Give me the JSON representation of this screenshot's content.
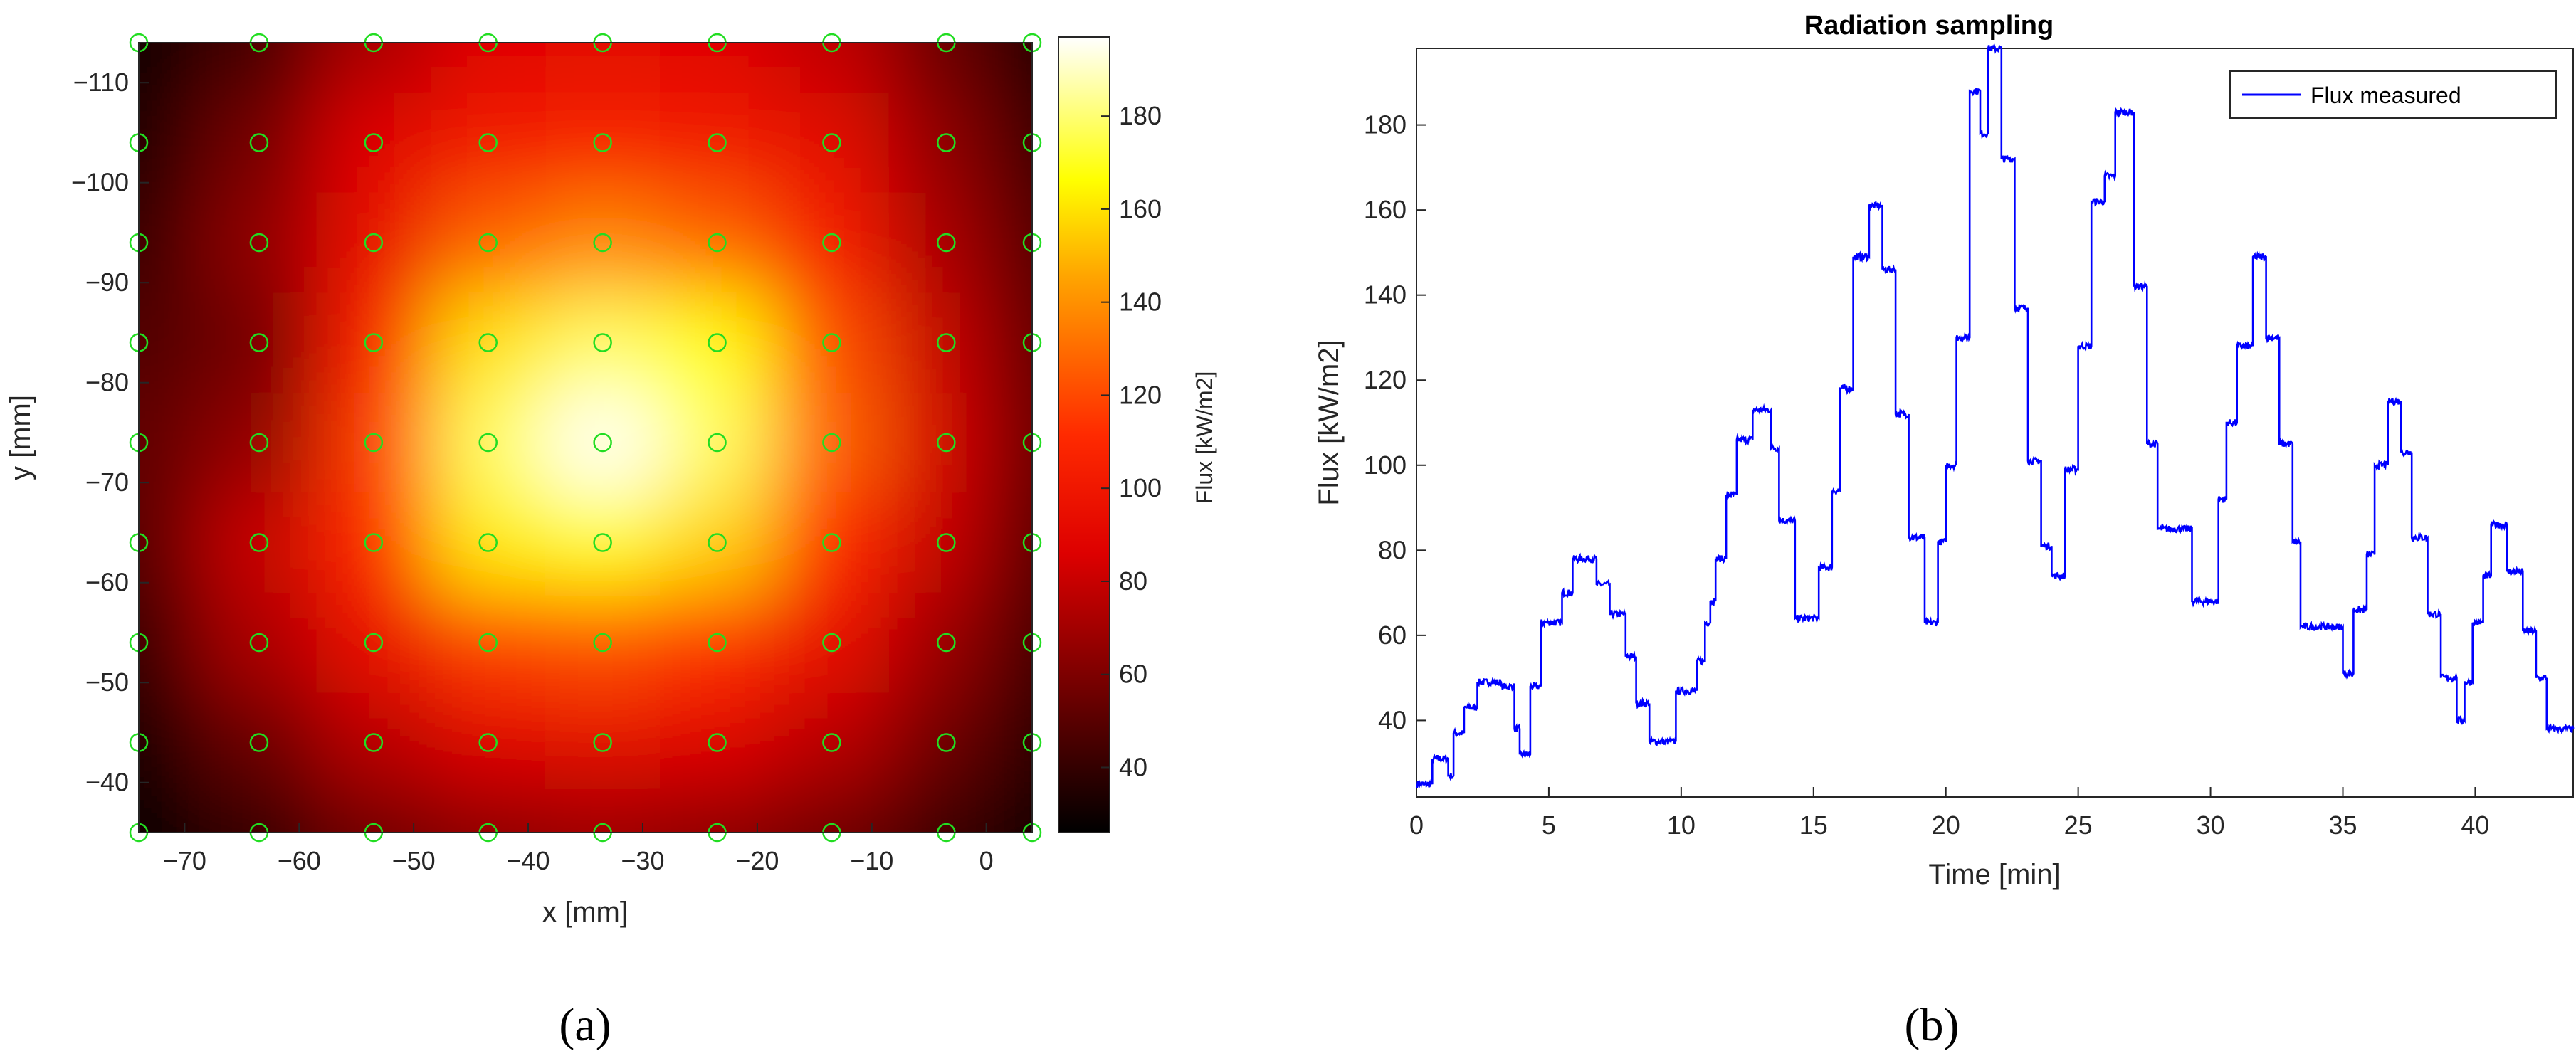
{
  "panels": {
    "a": "(a)",
    "b": "(b)"
  },
  "chart_data": [
    {
      "type": "heatmap",
      "xlabel": "x [mm]",
      "ylabel": "y [mm]",
      "colorbar_label": "Flux [kW/m2]",
      "colormap": "hot",
      "xlim": [
        -74,
        4
      ],
      "ylim": [
        -35,
        -114
      ],
      "y_axis_reversed": true,
      "clim": [
        26,
        197
      ],
      "x_ticks": [
        -70,
        -60,
        -50,
        -40,
        -30,
        -20,
        -10,
        0
      ],
      "y_ticks": [
        -110,
        -100,
        -90,
        -80,
        -70,
        -60,
        -50,
        -40
      ],
      "colorbar_ticks": [
        40,
        60,
        80,
        100,
        120,
        140,
        160,
        180
      ],
      "sample_points_x": [
        -74,
        -63.5,
        -53.5,
        -43.5,
        -33.5,
        -23.5,
        -13.5,
        -3.5,
        4
      ],
      "sample_points_y": [
        -114,
        -104,
        -94,
        -84,
        -74,
        -64,
        -54,
        -44,
        -35
      ],
      "sample_marker": {
        "shape": "circle",
        "color": "#22dd22"
      },
      "flux_grid_kw_m2": [
        [
          28,
          45,
          72,
          88,
          90,
          88,
          78,
          55,
          35
        ],
        [
          35,
          58,
          88,
          102,
          106,
          102,
          90,
          65,
          42
        ],
        [
          42,
          65,
          95,
          128,
          138,
          128,
          104,
          72,
          48
        ],
        [
          48,
          58,
          108,
          160,
          178,
          166,
          122,
          80,
          52
        ],
        [
          52,
          66,
          118,
          178,
          196,
          178,
          128,
          84,
          54
        ],
        [
          50,
          80,
          112,
          162,
          168,
          156,
          112,
          80,
          50
        ],
        [
          42,
          72,
          96,
          118,
          122,
          114,
          94,
          68,
          44
        ],
        [
          34,
          55,
          76,
          88,
          92,
          88,
          76,
          56,
          36
        ],
        [
          26,
          40,
          56,
          64,
          68,
          64,
          56,
          42,
          28
        ]
      ]
    },
    {
      "type": "line",
      "title": "Radiation sampling",
      "xlabel": "Time [min]",
      "ylabel": "Flux [kW/m2]",
      "xlim": [
        0,
        43.7
      ],
      "ylim": [
        22,
        198
      ],
      "x_ticks": [
        0,
        5,
        10,
        15,
        20,
        25,
        30,
        35,
        40
      ],
      "y_ticks": [
        40,
        60,
        80,
        100,
        120,
        140,
        160,
        180
      ],
      "legend_position": "top-right",
      "series": [
        {
          "name": "Flux measured",
          "color": "#0000ff",
          "steps": [
            [
              0.0,
              25
            ],
            [
              0.3,
              25
            ],
            [
              0.6,
              31
            ],
            [
              1.2,
              27
            ],
            [
              1.4,
              37
            ],
            [
              1.8,
              43
            ],
            [
              2.3,
              49
            ],
            [
              3.2,
              48
            ],
            [
              3.7,
              38
            ],
            [
              3.9,
              32
            ],
            [
              4.3,
              48
            ],
            [
              4.7,
              63
            ],
            [
              5.5,
              70
            ],
            [
              5.9,
              78
            ],
            [
              6.8,
              72
            ],
            [
              7.3,
              65
            ],
            [
              7.9,
              55
            ],
            [
              8.3,
              44
            ],
            [
              8.8,
              35
            ],
            [
              9.8,
              47
            ],
            [
              10.6,
              54
            ],
            [
              10.9,
              63
            ],
            [
              11.1,
              68
            ],
            [
              11.3,
              78
            ],
            [
              11.7,
              93
            ],
            [
              12.1,
              106
            ],
            [
              12.7,
              113
            ],
            [
              13.4,
              104
            ],
            [
              13.7,
              87
            ],
            [
              14.3,
              64
            ],
            [
              15.2,
              76
            ],
            [
              15.7,
              94
            ],
            [
              16.0,
              118
            ],
            [
              16.5,
              149
            ],
            [
              17.1,
              161
            ],
            [
              17.6,
              146
            ],
            [
              18.1,
              112
            ],
            [
              18.6,
              83
            ],
            [
              19.2,
              63
            ],
            [
              19.7,
              82
            ],
            [
              20.0,
              100
            ],
            [
              20.4,
              130
            ],
            [
              20.9,
              188
            ],
            [
              21.3,
              178
            ],
            [
              21.6,
              198
            ],
            [
              22.1,
              172
            ],
            [
              22.6,
              137
            ],
            [
              23.1,
              101
            ],
            [
              23.6,
              81
            ],
            [
              24.0,
              74
            ],
            [
              24.5,
              99
            ],
            [
              25.0,
              128
            ],
            [
              25.5,
              162
            ],
            [
              26.0,
              168
            ],
            [
              26.4,
              183
            ],
            [
              27.1,
              142
            ],
            [
              27.6,
              105
            ],
            [
              28.0,
              85
            ],
            [
              29.3,
              68
            ],
            [
              30.3,
              92
            ],
            [
              30.6,
              110
            ],
            [
              31.0,
              128
            ],
            [
              31.6,
              149
            ],
            [
              32.1,
              130
            ],
            [
              32.6,
              105
            ],
            [
              33.1,
              82
            ],
            [
              33.4,
              62
            ],
            [
              35.0,
              51
            ],
            [
              35.4,
              66
            ],
            [
              35.9,
              79
            ],
            [
              36.2,
              100
            ],
            [
              36.7,
              115
            ],
            [
              37.2,
              103
            ],
            [
              37.6,
              83
            ],
            [
              38.2,
              65
            ],
            [
              38.7,
              50
            ],
            [
              39.3,
              40
            ],
            [
              39.6,
              49
            ],
            [
              39.9,
              63
            ],
            [
              40.3,
              74
            ],
            [
              40.6,
              86
            ],
            [
              41.2,
              75
            ],
            [
              41.8,
              61
            ],
            [
              42.3,
              50
            ],
            [
              42.7,
              38
            ],
            [
              43.7,
              38
            ]
          ]
        }
      ]
    }
  ]
}
